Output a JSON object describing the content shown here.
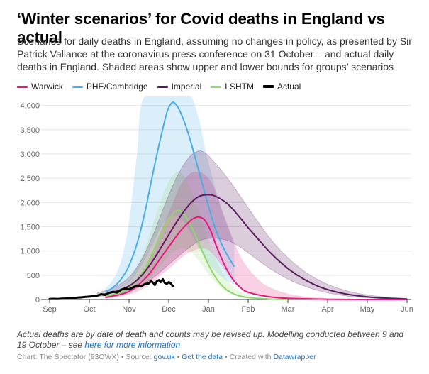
{
  "title": "‘Winter scenarios’ for Covid deaths in England vs actual",
  "subtitle": "Scenarios for daily deaths in England, assuming no changes in policy, as presented by Sir Patrick Vallance at the coronavirus press conference on 31 October – and actual daily deaths in England. Shaded areas show upper and lower bounds for groups’ scenarios",
  "notes": {
    "text": "Actual deaths are by date of death and counts may be revised up. Modelling conducted between 9 and 19 October – see ",
    "link": "here for more information"
  },
  "footer": {
    "chart_label": "Chart: The Spectator (93OWX)",
    "sep1": " • ",
    "source_label": "Source: ",
    "source_link": "gov.uk",
    "sep2": " • ",
    "data_link": "Get the data",
    "sep3": " • ",
    "created_label": "Created with ",
    "created_link": "Datawrapper"
  },
  "colors": {
    "warwick": "#e8177a",
    "phe": "#4aaee6",
    "imperial": "#5a1c5e",
    "lshtm": "#8fd66b",
    "actual": "#000000",
    "grid": "#e5e5e5"
  },
  "chart_data": {
    "type": "line",
    "title": "‘Winter scenarios’ for Covid deaths in England vs actual",
    "x_ticks": [
      "Sep",
      "Oct",
      "Nov",
      "Dec",
      "Jan",
      "Feb",
      "Mar",
      "Apr",
      "May",
      "Jun"
    ],
    "x_ticks_months_from_sep1": [
      0,
      1,
      2,
      3,
      4,
      5,
      6,
      7,
      8,
      9
    ],
    "y_ticks": [
      "0",
      "500",
      "1,000",
      "1,500",
      "2,000",
      "2,500",
      "3,000",
      "3,500",
      "4,000"
    ],
    "ylim": [
      0,
      4200
    ],
    "grid": true,
    "legend_position": "top-left",
    "series": [
      {
        "key": "warwick",
        "name": "Warwick",
        "points": [
          [
            1.4,
            40
          ],
          [
            1.9,
            130
          ],
          [
            2.2,
            280
          ],
          [
            2.5,
            520
          ],
          [
            2.8,
            860
          ],
          [
            3.1,
            1200
          ],
          [
            3.3,
            1420
          ],
          [
            3.5,
            1590
          ],
          [
            3.6,
            1660
          ],
          [
            3.75,
            1700
          ],
          [
            3.9,
            1640
          ],
          [
            4.05,
            1430
          ],
          [
            4.2,
            1100
          ],
          [
            4.4,
            720
          ],
          [
            4.6,
            430
          ],
          [
            4.8,
            250
          ],
          [
            5.0,
            150
          ],
          [
            5.5,
            60
          ],
          [
            6.0,
            25
          ],
          [
            7.0,
            5
          ],
          [
            8.0,
            0
          ],
          [
            9.0,
            0
          ]
        ],
        "upper": [
          [
            1.4,
            60
          ],
          [
            1.9,
            190
          ],
          [
            2.2,
            420
          ],
          [
            2.5,
            820
          ],
          [
            2.8,
            1400
          ],
          [
            3.1,
            1990
          ],
          [
            3.3,
            2370
          ],
          [
            3.5,
            2570
          ],
          [
            3.6,
            2620
          ],
          [
            3.75,
            2630
          ],
          [
            3.9,
            2580
          ],
          [
            4.1,
            2380
          ],
          [
            4.3,
            1940
          ],
          [
            4.5,
            1500
          ],
          [
            4.7,
            1080
          ],
          [
            4.9,
            760
          ],
          [
            5.2,
            460
          ],
          [
            5.5,
            270
          ],
          [
            6.0,
            120
          ],
          [
            6.5,
            55
          ],
          [
            7.0,
            25
          ],
          [
            8.0,
            5
          ],
          [
            9.0,
            0
          ]
        ],
        "lower": [
          [
            1.4,
            20
          ],
          [
            1.9,
            80
          ],
          [
            2.2,
            160
          ],
          [
            2.5,
            300
          ],
          [
            2.8,
            500
          ],
          [
            3.1,
            700
          ],
          [
            3.3,
            850
          ],
          [
            3.5,
            960
          ],
          [
            3.7,
            1030
          ],
          [
            3.85,
            1050
          ],
          [
            4.0,
            1020
          ],
          [
            4.2,
            850
          ],
          [
            4.4,
            620
          ],
          [
            4.6,
            410
          ],
          [
            4.8,
            250
          ],
          [
            5.0,
            150
          ],
          [
            5.5,
            60
          ],
          [
            6.0,
            20
          ],
          [
            7.0,
            0
          ],
          [
            8.0,
            0
          ],
          [
            9.0,
            0
          ]
        ]
      },
      {
        "key": "phe",
        "name": "PHE/Cambridge",
        "points": [
          [
            1.4,
            150
          ],
          [
            1.6,
            250
          ],
          [
            1.8,
            420
          ],
          [
            2.0,
            700
          ],
          [
            2.2,
            1150
          ],
          [
            2.4,
            1800
          ],
          [
            2.6,
            2600
          ],
          [
            2.8,
            3350
          ],
          [
            2.95,
            3850
          ],
          [
            3.05,
            4030
          ],
          [
            3.15,
            4050
          ],
          [
            3.3,
            3850
          ],
          [
            3.5,
            3400
          ],
          [
            3.7,
            2820
          ],
          [
            3.9,
            2220
          ],
          [
            4.1,
            1650
          ],
          [
            4.3,
            1200
          ],
          [
            4.5,
            880
          ],
          [
            4.65,
            680
          ]
        ],
        "upper": [
          [
            1.4,
            230
          ],
          [
            1.6,
            420
          ],
          [
            1.8,
            800
          ],
          [
            2.0,
            1600
          ],
          [
            2.2,
            3000
          ],
          [
            2.4,
            4200
          ],
          [
            3.3,
            4200
          ],
          [
            3.55,
            4200
          ],
          [
            3.75,
            3750
          ],
          [
            3.95,
            3000
          ],
          [
            4.15,
            2350
          ],
          [
            4.35,
            1800
          ],
          [
            4.5,
            1450
          ],
          [
            4.65,
            1150
          ]
        ],
        "lower": [
          [
            1.4,
            90
          ],
          [
            1.6,
            140
          ],
          [
            1.8,
            230
          ],
          [
            2.0,
            360
          ],
          [
            2.2,
            560
          ],
          [
            2.4,
            820
          ],
          [
            2.6,
            1140
          ],
          [
            2.8,
            1480
          ],
          [
            3.0,
            1700
          ],
          [
            3.2,
            1720
          ],
          [
            3.4,
            1580
          ],
          [
            3.6,
            1300
          ],
          [
            3.8,
            1000
          ],
          [
            4.0,
            750
          ],
          [
            4.2,
            560
          ],
          [
            4.4,
            420
          ],
          [
            4.65,
            300
          ]
        ]
      },
      {
        "key": "imperial",
        "name": "Imperial",
        "points": [
          [
            1.2,
            90
          ],
          [
            1.6,
            150
          ],
          [
            2.0,
            280
          ],
          [
            2.3,
            480
          ],
          [
            2.6,
            800
          ],
          [
            2.9,
            1200
          ],
          [
            3.2,
            1600
          ],
          [
            3.5,
            1940
          ],
          [
            3.75,
            2120
          ],
          [
            4.0,
            2160
          ],
          [
            4.2,
            2120
          ],
          [
            4.5,
            1960
          ],
          [
            4.8,
            1680
          ],
          [
            5.0,
            1480
          ],
          [
            5.3,
            1200
          ],
          [
            5.6,
            930
          ],
          [
            6.0,
            640
          ],
          [
            6.4,
            420
          ],
          [
            6.8,
            260
          ],
          [
            7.2,
            160
          ],
          [
            7.6,
            95
          ],
          [
            8.0,
            55
          ],
          [
            8.4,
            30
          ],
          [
            9.0,
            10
          ]
        ],
        "upper": [
          [
            1.2,
            140
          ],
          [
            1.6,
            240
          ],
          [
            2.0,
            460
          ],
          [
            2.3,
            800
          ],
          [
            2.6,
            1320
          ],
          [
            2.9,
            1950
          ],
          [
            3.2,
            2520
          ],
          [
            3.5,
            2920
          ],
          [
            3.75,
            3060
          ],
          [
            3.95,
            3000
          ],
          [
            4.2,
            2780
          ],
          [
            4.5,
            2480
          ],
          [
            4.8,
            2130
          ],
          [
            5.0,
            1890
          ],
          [
            5.3,
            1540
          ],
          [
            5.6,
            1210
          ],
          [
            6.0,
            860
          ],
          [
            6.4,
            590
          ],
          [
            6.8,
            390
          ],
          [
            7.2,
            250
          ],
          [
            7.6,
            155
          ],
          [
            8.0,
            95
          ],
          [
            8.4,
            55
          ],
          [
            9.0,
            20
          ]
        ],
        "lower": [
          [
            1.2,
            60
          ],
          [
            1.6,
            100
          ],
          [
            2.0,
            170
          ],
          [
            2.3,
            280
          ],
          [
            2.6,
            440
          ],
          [
            2.9,
            650
          ],
          [
            3.2,
            860
          ],
          [
            3.5,
            1060
          ],
          [
            3.75,
            1200
          ],
          [
            4.0,
            1260
          ],
          [
            4.2,
            1260
          ],
          [
            4.5,
            1210
          ],
          [
            4.8,
            1080
          ],
          [
            5.0,
            960
          ],
          [
            5.3,
            780
          ],
          [
            5.6,
            610
          ],
          [
            6.0,
            420
          ],
          [
            6.4,
            280
          ],
          [
            6.8,
            175
          ],
          [
            7.2,
            105
          ],
          [
            7.6,
            60
          ],
          [
            8.0,
            35
          ],
          [
            8.4,
            18
          ],
          [
            9.0,
            5
          ]
        ]
      },
      {
        "key": "lshtm",
        "name": "LSHTM",
        "points": [
          [
            1.4,
            60
          ],
          [
            1.8,
            150
          ],
          [
            2.1,
            320
          ],
          [
            2.4,
            640
          ],
          [
            2.7,
            1150
          ],
          [
            2.95,
            1580
          ],
          [
            3.1,
            1760
          ],
          [
            3.25,
            1840
          ],
          [
            3.4,
            1740
          ],
          [
            3.6,
            1450
          ],
          [
            3.8,
            1080
          ],
          [
            4.0,
            720
          ],
          [
            4.2,
            430
          ],
          [
            4.4,
            240
          ],
          [
            4.6,
            130
          ],
          [
            4.8,
            70
          ],
          [
            5.0,
            40
          ],
          [
            5.5,
            10
          ],
          [
            6.0,
            0
          ]
        ],
        "upper": [
          [
            1.4,
            90
          ],
          [
            1.8,
            230
          ],
          [
            2.1,
            520
          ],
          [
            2.4,
            1050
          ],
          [
            2.7,
            1800
          ],
          [
            2.95,
            2350
          ],
          [
            3.15,
            2600
          ],
          [
            3.3,
            2620
          ],
          [
            3.45,
            2450
          ],
          [
            3.65,
            2050
          ],
          [
            3.85,
            1580
          ],
          [
            4.05,
            1110
          ],
          [
            4.25,
            720
          ],
          [
            4.45,
            430
          ],
          [
            4.65,
            250
          ],
          [
            4.85,
            140
          ],
          [
            5.1,
            70
          ],
          [
            5.5,
            25
          ],
          [
            6.0,
            5
          ]
        ],
        "lower": [
          [
            1.4,
            40
          ],
          [
            1.8,
            90
          ],
          [
            2.1,
            180
          ],
          [
            2.4,
            340
          ],
          [
            2.7,
            600
          ],
          [
            2.95,
            850
          ],
          [
            3.15,
            1000
          ],
          [
            3.35,
            1060
          ],
          [
            3.55,
            980
          ],
          [
            3.75,
            800
          ],
          [
            3.95,
            580
          ],
          [
            4.15,
            380
          ],
          [
            4.35,
            220
          ],
          [
            4.55,
            120
          ],
          [
            4.75,
            60
          ],
          [
            5.0,
            30
          ],
          [
            5.5,
            5
          ],
          [
            6.0,
            0
          ]
        ]
      },
      {
        "key": "actual",
        "name": "Actual",
        "points": [
          [
            0.0,
            10
          ],
          [
            0.1,
            15
          ],
          [
            0.2,
            12
          ],
          [
            0.3,
            18
          ],
          [
            0.4,
            20
          ],
          [
            0.5,
            25
          ],
          [
            0.6,
            28
          ],
          [
            0.7,
            40
          ],
          [
            0.8,
            45
          ],
          [
            0.9,
            55
          ],
          [
            1.0,
            60
          ],
          [
            1.1,
            70
          ],
          [
            1.2,
            80
          ],
          [
            1.3,
            110
          ],
          [
            1.4,
            95
          ],
          [
            1.5,
            140
          ],
          [
            1.6,
            160
          ],
          [
            1.7,
            145
          ],
          [
            1.8,
            200
          ],
          [
            1.9,
            230
          ],
          [
            2.0,
            210
          ],
          [
            2.1,
            250
          ],
          [
            2.2,
            290
          ],
          [
            2.3,
            270
          ],
          [
            2.4,
            320
          ],
          [
            2.5,
            330
          ],
          [
            2.55,
            380
          ],
          [
            2.6,
            350
          ],
          [
            2.65,
            300
          ],
          [
            2.7,
            380
          ],
          [
            2.75,
            400
          ],
          [
            2.8,
            360
          ],
          [
            2.85,
            420
          ],
          [
            2.9,
            340
          ],
          [
            2.95,
            320
          ],
          [
            3.0,
            360
          ],
          [
            3.05,
            330
          ],
          [
            3.1,
            280
          ]
        ]
      }
    ]
  }
}
